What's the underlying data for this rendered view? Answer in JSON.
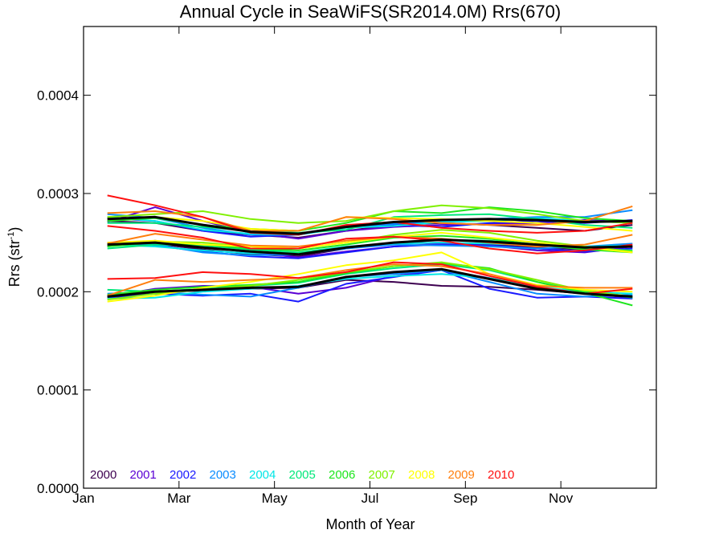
{
  "chart_data": {
    "type": "line",
    "title": "Annual Cycle in SeaWiFS(SR2014.0M) Rrs(670)",
    "xlabel": "Month of Year",
    "ylabel": {
      "main": "Rrs (str",
      "sup": "-1",
      "close": ")"
    },
    "xlim": [
      1,
      13
    ],
    "ylim": [
      0,
      0.00047
    ],
    "x_ticks": [
      {
        "value": 1,
        "label": "Jan"
      },
      {
        "value": 3,
        "label": "Mar"
      },
      {
        "value": 5,
        "label": "May"
      },
      {
        "value": 7,
        "label": "Jul"
      },
      {
        "value": 9,
        "label": "Sep"
      },
      {
        "value": 11,
        "label": "Nov"
      }
    ],
    "y_ticks": [
      {
        "value": 0,
        "label": "0.0000"
      },
      {
        "value": 0.0001,
        "label": "0.0001"
      },
      {
        "value": 0.0002,
        "label": "0.0002"
      },
      {
        "value": 0.0003,
        "label": "0.0003"
      },
      {
        "value": 0.0004,
        "label": "0.0004"
      }
    ],
    "x": [
      1.5,
      2.5,
      3.5,
      4.5,
      5.5,
      6.5,
      7.5,
      8.5,
      9.5,
      10.5,
      11.5,
      12.5
    ],
    "legend": {
      "placement": "bottom-left"
    },
    "series": [
      {
        "name": "2000",
        "color": "#3d0050",
        "high": [
          0.000272,
          0.00027,
          0.000262,
          0.000258,
          0.000255,
          0.000262,
          0.000268,
          0.00027,
          0.000268,
          0.000265,
          0.000262,
          0.000268
        ],
        "mid": [
          0.000247,
          0.000249,
          0.000243,
          0.000238,
          0.000236,
          0.000244,
          0.000249,
          0.00025,
          0.000248,
          0.000245,
          0.000243,
          0.000246
        ],
        "low": [
          0.000196,
          0.0002,
          0.000201,
          0.000203,
          0.000204,
          0.000212,
          0.00021,
          0.000206,
          0.000205,
          0.000202,
          0.000198,
          0.000195
        ]
      },
      {
        "name": "2001",
        "color": "#5a00d4",
        "high": [
          0.000271,
          0.000286,
          0.000272,
          0.00026,
          0.000254,
          0.000262,
          0.000266,
          0.000268,
          0.000269,
          0.00027,
          0.000273,
          0.000271
        ],
        "mid": [
          0.000246,
          0.000252,
          0.000246,
          0.00024,
          0.000235,
          0.000241,
          0.000246,
          0.000249,
          0.000247,
          0.000242,
          0.00024,
          0.000246
        ],
        "low": [
          0.000195,
          0.000203,
          0.000206,
          0.000205,
          0.000198,
          0.000204,
          0.000216,
          0.000222,
          0.000214,
          0.000204,
          0.000198,
          0.000194
        ]
      },
      {
        "name": "2002",
        "color": "#1a1aff",
        "high": [
          0.000275,
          0.000272,
          0.000262,
          0.000256,
          0.000258,
          0.000266,
          0.000268,
          0.000266,
          0.00027,
          0.000272,
          0.00027,
          0.000273
        ],
        "mid": [
          0.000249,
          0.000247,
          0.000241,
          0.000236,
          0.000234,
          0.00024,
          0.000246,
          0.000248,
          0.000247,
          0.000244,
          0.000241,
          0.000244
        ],
        "low": [
          0.000194,
          0.000198,
          0.000196,
          0.000198,
          0.00019,
          0.000208,
          0.000215,
          0.000222,
          0.000203,
          0.000194,
          0.000195,
          0.000193
        ]
      },
      {
        "name": "2003",
        "color": "#0a8cff",
        "high": [
          0.000279,
          0.000275,
          0.000265,
          0.000258,
          0.000258,
          0.000266,
          0.000269,
          0.000272,
          0.000274,
          0.000276,
          0.000276,
          0.000283
        ],
        "mid": [
          0.00025,
          0.000248,
          0.00024,
          0.000237,
          0.000238,
          0.000244,
          0.000248,
          0.000247,
          0.000246,
          0.000244,
          0.000246,
          0.000249
        ],
        "low": [
          0.000198,
          0.0002,
          0.000197,
          0.000195,
          0.000204,
          0.000215,
          0.000218,
          0.000222,
          0.00021,
          0.000198,
          0.000195,
          0.000197
        ]
      },
      {
        "name": "2004",
        "color": "#00e6e6",
        "high": [
          0.000276,
          0.000272,
          0.000263,
          0.000259,
          0.000258,
          0.000265,
          0.000267,
          0.000271,
          0.000272,
          0.000275,
          0.000272,
          0.00027
        ],
        "mid": [
          0.000248,
          0.000246,
          0.000242,
          0.000239,
          0.00024,
          0.000246,
          0.000249,
          0.00025,
          0.000249,
          0.000247,
          0.000246,
          0.000247
        ],
        "low": [
          0.000193,
          0.000194,
          0.0002,
          0.000203,
          0.000206,
          0.000213,
          0.000216,
          0.000218,
          0.000214,
          0.000205,
          0.0002,
          0.000198
        ]
      },
      {
        "name": "2005",
        "color": "#00e87a",
        "high": [
          0.00027,
          0.00027,
          0.000266,
          0.000262,
          0.00026,
          0.000263,
          0.000276,
          0.000278,
          0.000279,
          0.000274,
          0.000268,
          0.000265
        ],
        "mid": [
          0.000244,
          0.000248,
          0.000247,
          0.000243,
          0.00024,
          0.000245,
          0.00025,
          0.000253,
          0.000252,
          0.000248,
          0.000244,
          0.000242
        ],
        "low": [
          0.000202,
          0.0002,
          0.000203,
          0.000206,
          0.000209,
          0.000218,
          0.000224,
          0.000228,
          0.000222,
          0.00021,
          0.0002,
          0.000194
        ]
      },
      {
        "name": "2006",
        "color": "#1ee61e",
        "high": [
          0.000272,
          0.000275,
          0.000268,
          0.000264,
          0.000262,
          0.00027,
          0.000282,
          0.00028,
          0.000286,
          0.000282,
          0.000275,
          0.000272
        ],
        "mid": [
          0.000246,
          0.00025,
          0.000248,
          0.000244,
          0.000242,
          0.000248,
          0.000255,
          0.000257,
          0.000254,
          0.000248,
          0.000243,
          0.00024
        ],
        "low": [
          0.000197,
          0.000202,
          0.000205,
          0.000207,
          0.00021,
          0.000219,
          0.000226,
          0.000229,
          0.000224,
          0.00021,
          0.000199,
          0.000186
        ]
      },
      {
        "name": "2007",
        "color": "#80f000",
        "high": [
          0.000276,
          0.000279,
          0.000282,
          0.000274,
          0.00027,
          0.000272,
          0.000282,
          0.000288,
          0.000285,
          0.000279,
          0.000272,
          0.00027
        ],
        "mid": [
          0.000248,
          0.000251,
          0.00025,
          0.000246,
          0.000244,
          0.00025,
          0.000258,
          0.000263,
          0.00026,
          0.000252,
          0.000246,
          0.000241
        ],
        "low": [
          0.000192,
          0.000198,
          0.000202,
          0.000206,
          0.000212,
          0.00022,
          0.000226,
          0.00023,
          0.000223,
          0.000212,
          0.000201,
          0.000195
        ]
      },
      {
        "name": "2008",
        "color": "#ffff00",
        "high": [
          0.000274,
          0.000276,
          0.000272,
          0.000264,
          0.000262,
          0.000276,
          0.000275,
          0.000274,
          0.000272,
          0.00027,
          0.000266,
          0.000262
        ],
        "mid": [
          0.00025,
          0.000252,
          0.000248,
          0.000246,
          0.000244,
          0.00025,
          0.000256,
          0.00026,
          0.000255,
          0.00025,
          0.000245,
          0.00024
        ],
        "low": [
          0.00019,
          0.000196,
          0.000204,
          0.00021,
          0.000218,
          0.000227,
          0.000232,
          0.00024,
          0.000218,
          0.000207,
          0.000202,
          0.0002
        ]
      },
      {
        "name": "2009",
        "color": "#ff7f0e",
        "high": [
          0.00028,
          0.000282,
          0.000276,
          0.000262,
          0.000262,
          0.000276,
          0.000274,
          0.00027,
          0.000268,
          0.000268,
          0.000272,
          0.000287
        ],
        "mid": [
          0.000249,
          0.000259,
          0.000253,
          0.000247,
          0.000246,
          0.000252,
          0.000256,
          0.000254,
          0.00025,
          0.000246,
          0.000248,
          0.000258
        ],
        "low": [
          0.000196,
          0.000212,
          0.00021,
          0.000212,
          0.000214,
          0.000222,
          0.000228,
          0.000226,
          0.000218,
          0.000206,
          0.000204,
          0.000204
        ]
      },
      {
        "name": "2010",
        "color": "#ff1010",
        "high": [
          0.000298,
          0.000288,
          0.000276,
          0.00026,
          0.000258,
          0.000268,
          0.000271,
          0.000265,
          0.000262,
          0.00026,
          0.000262,
          0.00027
        ],
        "mid": [
          0.000267,
          0.000262,
          0.000255,
          0.000244,
          0.000244,
          0.000254,
          0.000256,
          0.000252,
          0.000244,
          0.000239,
          0.000242,
          0.000248
        ],
        "low": [
          0.000213,
          0.000214,
          0.00022,
          0.000218,
          0.000214,
          0.00022,
          0.00023,
          0.000228,
          0.000216,
          0.000205,
          0.000198,
          0.000203
        ]
      }
    ],
    "mean_series": {
      "color": "#000000",
      "high": [
        0.000274,
        0.000276,
        0.000268,
        0.000261,
        0.000259,
        0.000266,
        0.000271,
        0.000273,
        0.000274,
        0.000273,
        0.000271,
        0.000272
      ],
      "mid": [
        0.000248,
        0.00025,
        0.000245,
        0.000241,
        0.000238,
        0.000245,
        0.00025,
        0.000253,
        0.000251,
        0.000248,
        0.000245,
        0.000246
      ],
      "low": [
        0.000195,
        0.0002,
        0.000202,
        0.000204,
        0.000205,
        0.000215,
        0.00022,
        0.000223,
        0.000213,
        0.000203,
        0.000198,
        0.000195
      ]
    }
  }
}
